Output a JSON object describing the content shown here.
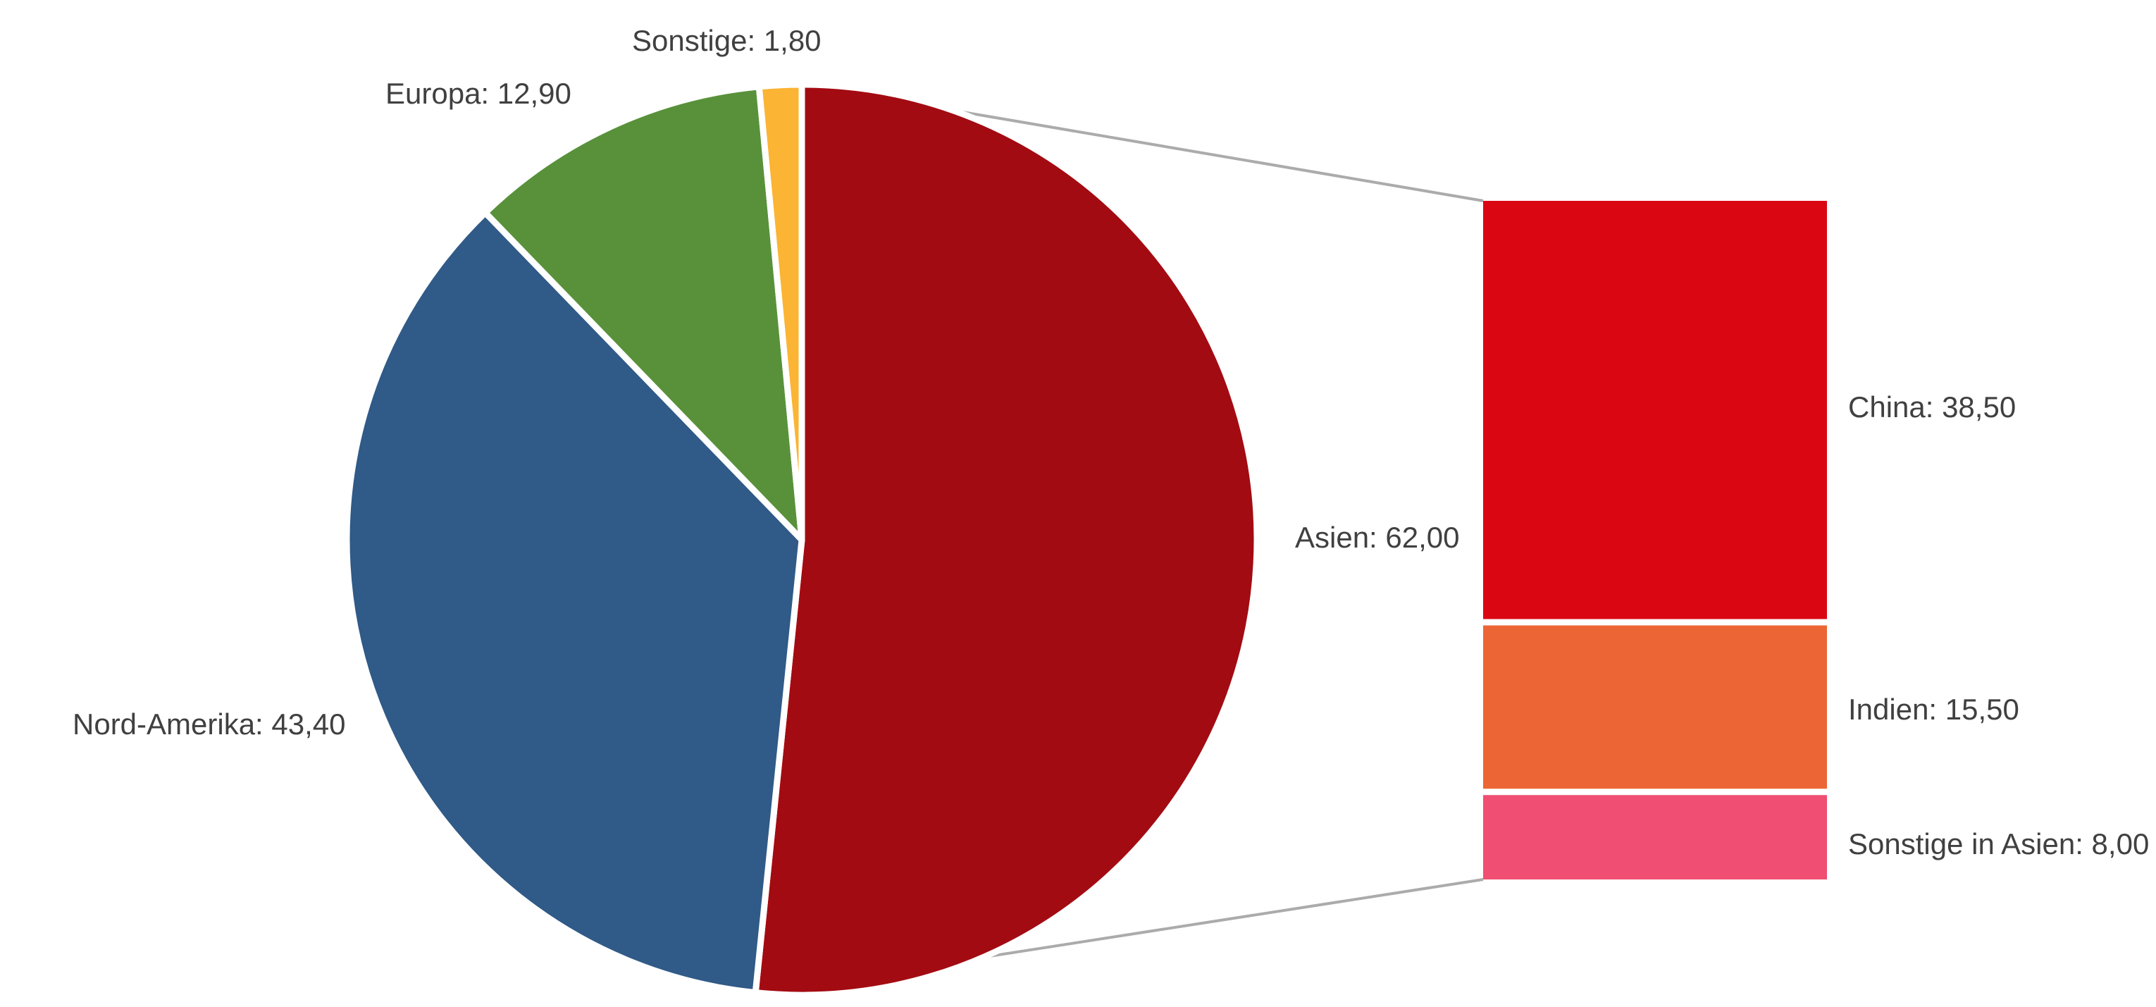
{
  "chart_data": [
    {
      "type": "pie",
      "title": "",
      "categories": [
        "Asien",
        "Nord-Amerika",
        "Europa",
        "Sonstige"
      ],
      "values": [
        62.0,
        43.4,
        12.9,
        1.8
      ],
      "labels": {
        "asien": "Asien: 62,00",
        "nord_amerika": "Nord-Amerika: 43,40",
        "europa": "Europa: 12,90",
        "sonstige": "Sonstige: 1,80"
      },
      "colors": [
        "#A30B12",
        "#305A87",
        "#58913A",
        "#FBB433"
      ],
      "start_angle_deg": 0,
      "direction": "clockwise",
      "slice_separator_color": "#FFFFFF",
      "legend": "none",
      "grid": "off"
    },
    {
      "type": "bar",
      "subtype": "stacked-breakout-of-slice",
      "parent_slice": "Asien",
      "categories": [
        "China",
        "Indien",
        "Sonstige in Asien"
      ],
      "values": [
        38.5,
        15.5,
        8.0
      ],
      "labels": {
        "china": "China: 38,50",
        "indien": "Indien: 15,50",
        "sonstige_in_asien": "Sonstige in Asien: 8,00"
      },
      "colors": [
        "#DA0713",
        "#EC6635",
        "#F04E72"
      ],
      "segment_separator_color": "#FFFFFF",
      "legend": "none",
      "grid": "off"
    }
  ],
  "styles": {
    "background_color": "#FFFFFF",
    "label_text_color": "#404040",
    "connector_line_color": "#ABABAB"
  }
}
